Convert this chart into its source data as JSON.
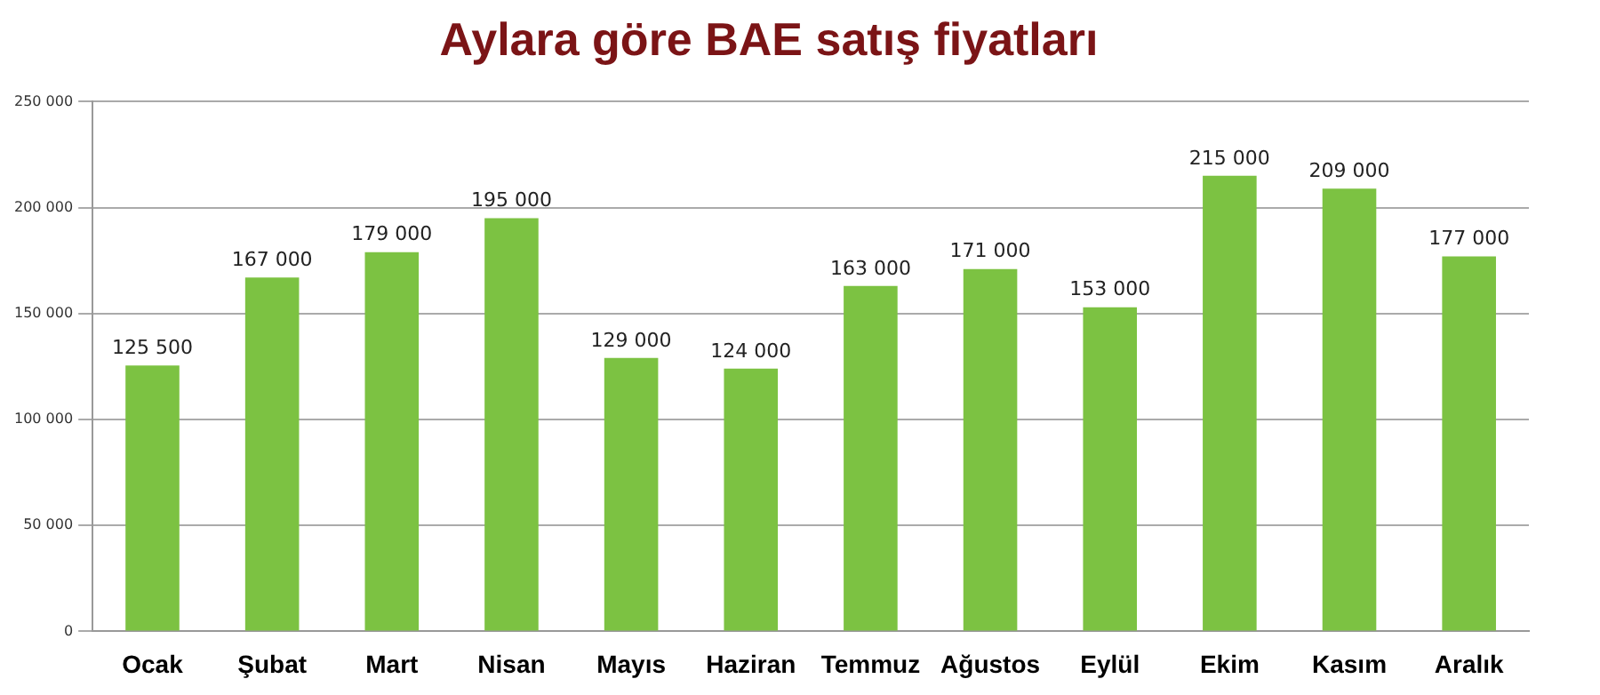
{
  "chart_data": {
    "type": "bar",
    "title": "Aylara göre BAE satış fiyatları",
    "categories": [
      "Ocak",
      "Şubat",
      "Mart",
      "Nisan",
      "Mayıs",
      "Haziran",
      "Temmuz",
      "Ağustos",
      "Eylül",
      "Ekim",
      "Kasım",
      "Aralık"
    ],
    "values": [
      125500,
      167000,
      179000,
      195000,
      129000,
      124000,
      163000,
      171000,
      153000,
      215000,
      209000,
      177000
    ],
    "value_labels": [
      "125 500",
      "167 000",
      "179 000",
      "195 000",
      "129 000",
      "124 000",
      "163 000",
      "171 000",
      "153 000",
      "215 000",
      "209 000",
      "177 000"
    ],
    "color": "#7cc242",
    "ylim": [
      0,
      250000
    ],
    "yticks": [
      {
        "value": 0,
        "label": "0"
      },
      {
        "value": 50000,
        "label": "50 000"
      },
      {
        "value": 100000,
        "label": "100 000"
      },
      {
        "value": 150000,
        "label": "150 000"
      },
      {
        "value": 200000,
        "label": "200 000"
      },
      {
        "value": 250000,
        "label": "250 000"
      }
    ],
    "grid": "y",
    "legend": false
  }
}
